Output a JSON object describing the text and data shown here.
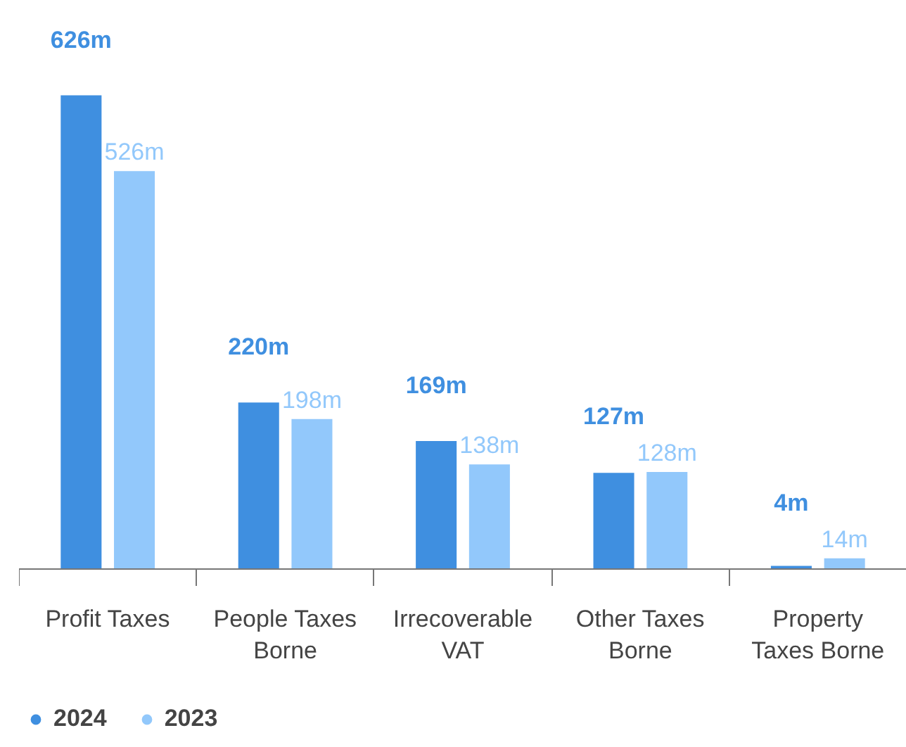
{
  "chart_data": {
    "type": "bar",
    "categories": [
      "Profit Taxes",
      "People Taxes Borne",
      "Irrecoverable VAT",
      "Other Taxes Borne",
      "Property Taxes Borne"
    ],
    "series": [
      {
        "name": "2024",
        "color": "#3f8fe0",
        "values": [
          626,
          220,
          169,
          127,
          4
        ],
        "value_labels": [
          "626m",
          "220m",
          "169m",
          "127m",
          "4m"
        ]
      },
      {
        "name": "2023",
        "color": "#92c8fb",
        "values": [
          526,
          198,
          138,
          128,
          14
        ],
        "value_labels": [
          "526m",
          "198m",
          "138m",
          "128m",
          "14m"
        ]
      }
    ],
    "legend": "bottom left"
  }
}
